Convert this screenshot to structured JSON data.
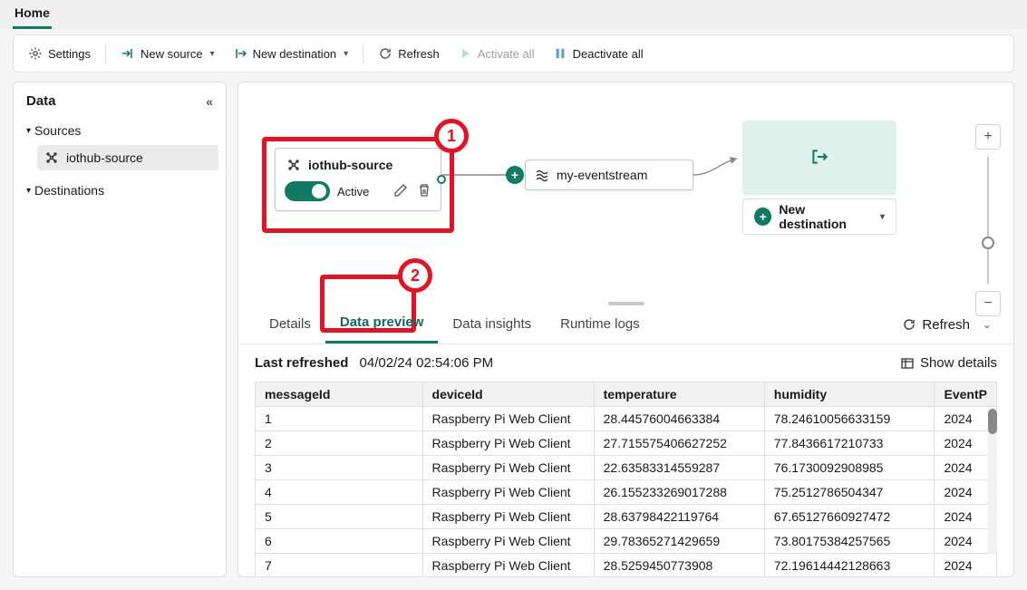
{
  "topTab": "Home",
  "toolbar": {
    "settings": "Settings",
    "newSource": "New source",
    "newDestination": "New destination",
    "refresh": "Refresh",
    "activateAll": "Activate all",
    "deactivateAll": "Deactivate all"
  },
  "sidebar": {
    "title": "Data",
    "groups": {
      "sources": "Sources",
      "destinations": "Destinations"
    },
    "sourceItem": "iothub-source"
  },
  "canvas": {
    "sourceNode": {
      "title": "iothub-source",
      "statusLabel": "Active",
      "toggleColor": "#0f7b63"
    },
    "streamNode": {
      "title": "my-eventstream"
    },
    "newDestination": "New destination"
  },
  "annotations": {
    "badge1": "1",
    "badge2": "2"
  },
  "panel": {
    "tabs": {
      "details": "Details",
      "dataPreview": "Data preview",
      "dataInsights": "Data insights",
      "runtimeLogs": "Runtime logs"
    },
    "refresh": "Refresh",
    "lastRefreshed": {
      "label": "Last refreshed",
      "value": "04/02/24 02:54:06 PM"
    },
    "showDetails": "Show details",
    "columns": [
      "messageId",
      "deviceId",
      "temperature",
      "humidity",
      "EventP"
    ],
    "rows": [
      [
        "1",
        "Raspberry Pi Web Client",
        "28.44576004663384",
        "78.24610056633159",
        "2024"
      ],
      [
        "2",
        "Raspberry Pi Web Client",
        "27.715575406627252",
        "77.8436617210733",
        "2024"
      ],
      [
        "3",
        "Raspberry Pi Web Client",
        "22.63583314559287",
        "76.1730092908985",
        "2024"
      ],
      [
        "4",
        "Raspberry Pi Web Client",
        "26.155233269017288",
        "75.2512786504347",
        "2024"
      ],
      [
        "5",
        "Raspberry Pi Web Client",
        "28.63798422119764",
        "67.65127660927472",
        "2024"
      ],
      [
        "6",
        "Raspberry Pi Web Client",
        "29.78365271429659",
        "73.80175384257565",
        "2024"
      ],
      [
        "7",
        "Raspberry Pi Web Client",
        "28.5259450773908",
        "72.19614442128663",
        "2024"
      ]
    ]
  },
  "colors": {
    "accent": "#0f7b63",
    "highlight": "#e81123",
    "border": "#e0e0e0",
    "bgSoftGreen": "#e1f1ec",
    "tableHeader": "#f2f2f2"
  }
}
